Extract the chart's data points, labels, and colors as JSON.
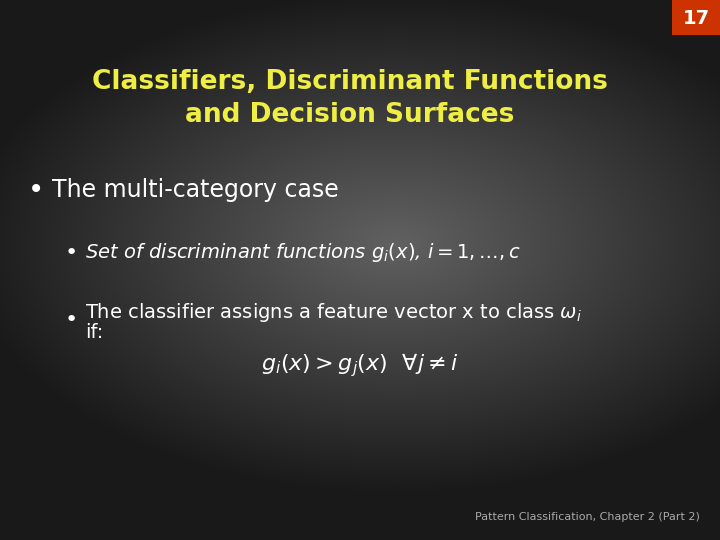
{
  "title_line1": "Classifiers, Discriminant Functions",
  "title_line2": "and Decision Surfaces",
  "title_color": "#EEEE44",
  "slide_number": "17",
  "slide_number_bg": "#CC3300",
  "slide_number_color": "#FFFFFF",
  "bullet1": "The multi-category case",
  "footer": "Pattern Classification, Chapter 2 (Part 2)",
  "footer_color": "#aaaaaa",
  "text_color": "#ffffff",
  "bg_dark": "#1a1a1a",
  "bg_mid": "#555555"
}
